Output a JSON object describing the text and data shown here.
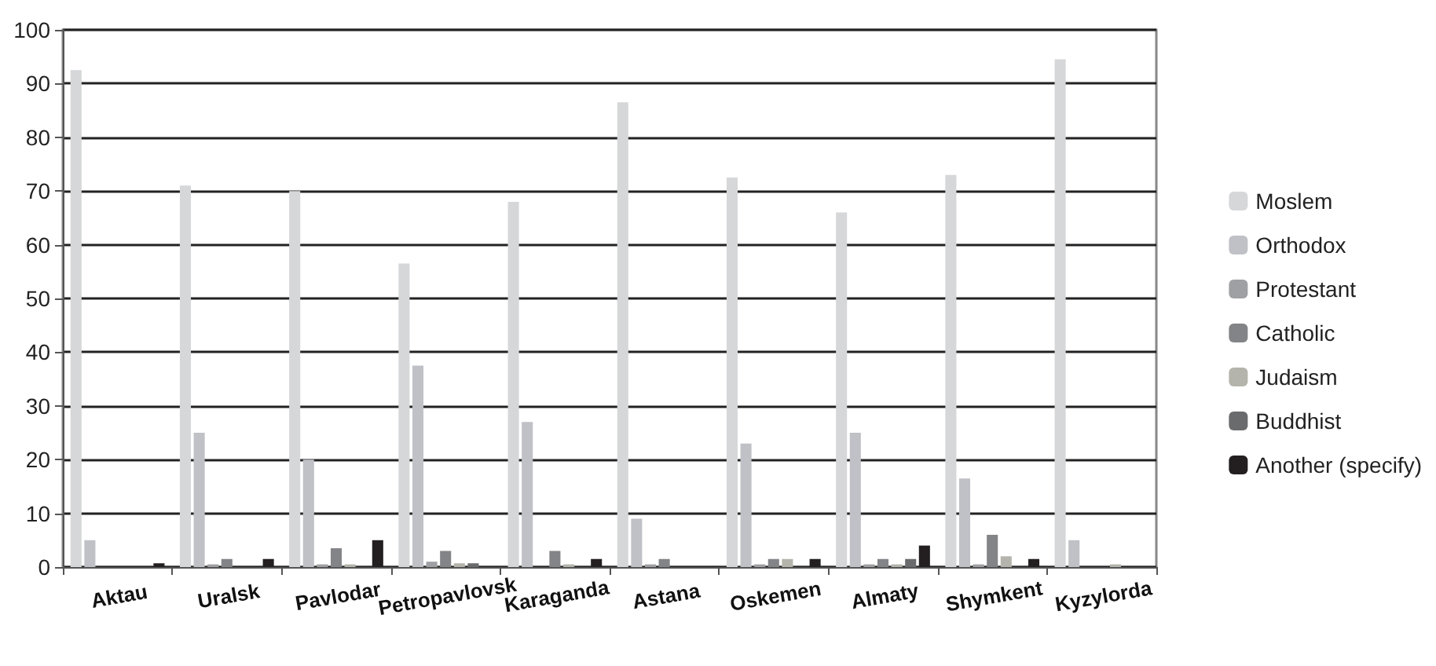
{
  "chart_data": {
    "type": "bar",
    "categories": [
      "Aktau",
      "Uralsk",
      "Pavlodar",
      "Petropavlovsk",
      "Karaganda",
      "Astana",
      "Oskemen",
      "Almaty",
      "Shymkent",
      "Kyzylorda"
    ],
    "series": [
      {
        "name": "Moslem",
        "color": "#d6d7d9",
        "values": [
          92.5,
          71,
          70,
          56.5,
          68,
          86.5,
          72.5,
          66,
          73,
          94.5
        ]
      },
      {
        "name": "Orthodox",
        "color": "#c0c1c6",
        "values": [
          5,
          25,
          20,
          37.5,
          27,
          9,
          23,
          25,
          16.5,
          5
        ]
      },
      {
        "name": "Protestant",
        "color": "#9fa0a3",
        "values": [
          0,
          0.5,
          0.5,
          1,
          0,
          0.5,
          0.5,
          0.5,
          0.5,
          0
        ]
      },
      {
        "name": "Catholic",
        "color": "#838487",
        "values": [
          0,
          1.5,
          3.5,
          3,
          3,
          1.5,
          1.5,
          1.5,
          6,
          0
        ]
      },
      {
        "name": "Judaism",
        "color": "#b4b4ac",
        "values": [
          0,
          0,
          0.5,
          0.7,
          0.5,
          0,
          1.5,
          0.5,
          2,
          0.5
        ]
      },
      {
        "name": "Buddhist",
        "color": "#6a6b6d",
        "values": [
          0,
          0,
          0,
          0.7,
          0,
          0,
          0,
          1.5,
          0,
          0
        ]
      },
      {
        "name": "Another (specify)",
        "color": "#231f20",
        "values": [
          0.7,
          1.5,
          5,
          0,
          1.5,
          0,
          1.5,
          4,
          1.5,
          0
        ]
      }
    ],
    "ylim": [
      0,
      100
    ],
    "yticks": [
      0,
      10,
      20,
      30,
      40,
      50,
      60,
      70,
      80,
      90,
      100
    ],
    "grid": "y",
    "legend": "right"
  }
}
